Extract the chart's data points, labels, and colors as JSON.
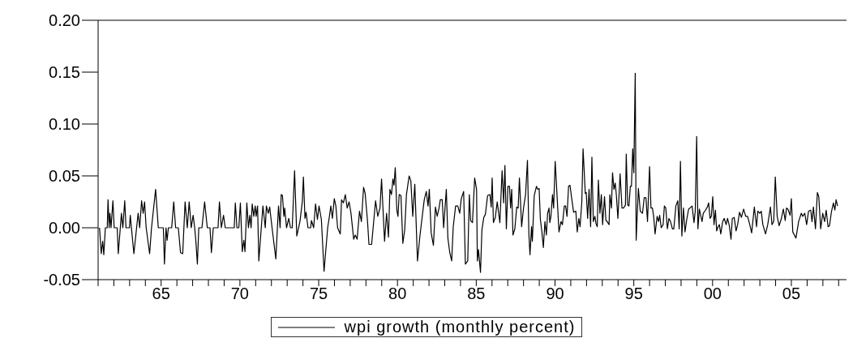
{
  "chart_data": {
    "type": "line",
    "legend": "bottom",
    "marker": "none",
    "line_style": "solid",
    "xlim": [
      1961,
      2008.5
    ],
    "xticks": [
      {
        "value": 1961,
        "label": null
      },
      {
        "value": 1962,
        "label": null
      },
      {
        "value": 1963,
        "label": null
      },
      {
        "value": 1964,
        "label": null
      },
      {
        "value": 1965,
        "label": "65"
      },
      {
        "value": 1966,
        "label": null
      },
      {
        "value": 1967,
        "label": null
      },
      {
        "value": 1968,
        "label": null
      },
      {
        "value": 1969,
        "label": null
      },
      {
        "value": 1970,
        "label": "70"
      },
      {
        "value": 1971,
        "label": null
      },
      {
        "value": 1972,
        "label": null
      },
      {
        "value": 1973,
        "label": null
      },
      {
        "value": 1974,
        "label": null
      },
      {
        "value": 1975,
        "label": "75"
      },
      {
        "value": 1976,
        "label": null
      },
      {
        "value": 1977,
        "label": null
      },
      {
        "value": 1978,
        "label": null
      },
      {
        "value": 1979,
        "label": null
      },
      {
        "value": 1980,
        "label": "80"
      },
      {
        "value": 1981,
        "label": null
      },
      {
        "value": 1982,
        "label": null
      },
      {
        "value": 1983,
        "label": null
      },
      {
        "value": 1984,
        "label": null
      },
      {
        "value": 1985,
        "label": "85"
      },
      {
        "value": 1986,
        "label": null
      },
      {
        "value": 1987,
        "label": null
      },
      {
        "value": 1988,
        "label": null
      },
      {
        "value": 1989,
        "label": null
      },
      {
        "value": 1990,
        "label": "90"
      },
      {
        "value": 1991,
        "label": null
      },
      {
        "value": 1992,
        "label": null
      },
      {
        "value": 1993,
        "label": null
      },
      {
        "value": 1994,
        "label": null
      },
      {
        "value": 1995,
        "label": "95"
      },
      {
        "value": 1996,
        "label": null
      },
      {
        "value": 1997,
        "label": null
      },
      {
        "value": 1998,
        "label": null
      },
      {
        "value": 1999,
        "label": null
      },
      {
        "value": 2000,
        "label": "00"
      },
      {
        "value": 2001,
        "label": null
      },
      {
        "value": 2002,
        "label": null
      },
      {
        "value": 2003,
        "label": null
      },
      {
        "value": 2004,
        "label": null
      },
      {
        "value": 2005,
        "label": "05"
      },
      {
        "value": 2006,
        "label": null
      },
      {
        "value": 2007,
        "label": null
      },
      {
        "value": 2008,
        "label": null
      }
    ],
    "ylim": [
      -0.05,
      0.2
    ],
    "yticks": [
      {
        "value": -0.05,
        "label": "-0.05"
      },
      {
        "value": 0,
        "label": "0.00"
      },
      {
        "value": 0.05,
        "label": "0.05"
      },
      {
        "value": 0.1,
        "label": "0.10"
      },
      {
        "value": 0.15,
        "label": "0.15"
      },
      {
        "value": 0.2,
        "label": "0.20"
      }
    ],
    "series": [
      {
        "name": "wpi growth (monthly percent)",
        "color": "#000000",
        "x": [
          1961.09,
          1961.2,
          1961.29,
          1961.36,
          1961.46,
          1961.58,
          1961.63,
          1961.7,
          1961.75,
          1961.82,
          1961.94,
          1962.02,
          1962.21,
          1962.28,
          1962.48,
          1962.57,
          1962.69,
          1962.77,
          1962.99,
          1963.04,
          1963.27,
          1963.54,
          1963.64,
          1963.76,
          1963.86,
          1963.95,
          1964.05,
          1964.27,
          1964.39,
          1964.65,
          1964.82,
          1965.14,
          1965.21,
          1965.31,
          1965.38,
          1965.46,
          1965.67,
          1965.8,
          1965.92,
          1966.09,
          1966.23,
          1966.37,
          1966.52,
          1966.66,
          1966.78,
          1966.91,
          1967.03,
          1967.13,
          1967.2,
          1967.3,
          1967.39,
          1967.59,
          1967.76,
          1967.93,
          1968.1,
          1968.19,
          1968.31,
          1968.61,
          1968.7,
          1968.82,
          1968.96,
          1969.07,
          1969.64,
          1969.71,
          1969.81,
          1969.93,
          1970.03,
          1970.15,
          1970.25,
          1970.32,
          1970.44,
          1970.54,
          1970.63,
          1970.71,
          1970.78,
          1970.88,
          1970.97,
          1971.03,
          1971.12,
          1971.2,
          1971.46,
          1971.61,
          1971.68,
          1971.8,
          1971.89,
          1972.04,
          1972.28,
          1972.45,
          1972.55,
          1972.62,
          1972.7,
          1972.79,
          1972.84,
          1972.96,
          1973.1,
          1973.21,
          1973.32,
          1973.47,
          1973.61,
          1973.81,
          1973.96,
          1974.03,
          1974.13,
          1974.2,
          1974.32,
          1974.49,
          1974.54,
          1974.68,
          1974.8,
          1974.92,
          1975.02,
          1975.17,
          1975.34,
          1975.57,
          1975.68,
          1975.77,
          1975.87,
          1975.99,
          1976.09,
          1976.2,
          1976.37,
          1976.45,
          1976.57,
          1976.69,
          1976.81,
          1976.93,
          1977.05,
          1977.22,
          1977.32,
          1977.44,
          1977.59,
          1977.71,
          1977.85,
          1977.95,
          1978.1,
          1978.19,
          1978.36,
          1978.61,
          1978.75,
          1978.89,
          1978.99,
          1979.18,
          1979.31,
          1979.43,
          1979.52,
          1979.62,
          1979.71,
          1979.78,
          1979.86,
          1979.96,
          1980.03,
          1980.11,
          1980.22,
          1980.34,
          1980.46,
          1980.57,
          1980.74,
          1980.85,
          1980.97,
          1981.1,
          1981.27,
          1981.43,
          1981.7,
          1981.83,
          1981.94,
          1982.02,
          1982.14,
          1982.28,
          1982.41,
          1982.52,
          1982.64,
          1982.72,
          1982.84,
          1982.93,
          1983.1,
          1983.2,
          1983.32,
          1983.44,
          1983.54,
          1983.69,
          1983.83,
          1983.95,
          1984.05,
          1984.2,
          1984.31,
          1984.46,
          1984.56,
          1984.64,
          1984.76,
          1984.9,
          1985.02,
          1985.07,
          1985.14,
          1985.27,
          1985.36,
          1985.48,
          1985.58,
          1985.72,
          1985.87,
          1985.95,
          1986.01,
          1986.09,
          1986.21,
          1986.33,
          1986.5,
          1986.64,
          1986.74,
          1986.82,
          1986.91,
          1987.01,
          1987.11,
          1987.18,
          1987.25,
          1987.33,
          1987.45,
          1987.57,
          1987.66,
          1987.74,
          1987.88,
          1988.0,
          1988.13,
          1988.25,
          1988.34,
          1988.41,
          1988.51,
          1988.56,
          1988.68,
          1988.82,
          1988.9,
          1988.99,
          1989.07,
          1989.16,
          1989.26,
          1989.36,
          1989.45,
          1989.53,
          1989.62,
          1989.67,
          1989.74,
          1989.84,
          1989.91,
          1990.01,
          1990.09,
          1990.25,
          1990.38,
          1990.47,
          1990.59,
          1990.67,
          1990.76,
          1990.86,
          1990.95,
          1991.06,
          1991.18,
          1991.32,
          1991.41,
          1991.51,
          1991.59,
          1991.7,
          1991.78,
          1991.92,
          1991.98,
          1992.07,
          1992.16,
          1992.26,
          1992.34,
          1992.43,
          1992.53,
          1992.6,
          1992.68,
          1992.75,
          1992.85,
          1992.94,
          1993.02,
          1993.14,
          1993.23,
          1993.31,
          1993.43,
          1993.48,
          1993.58,
          1993.65,
          1993.74,
          1993.82,
          1993.89,
          1993.99,
          1994.13,
          1994.25,
          1994.35,
          1994.47,
          1994.52,
          1994.61,
          1994.69,
          1994.78,
          1994.85,
          1994.93,
          1995.0,
          1995.09,
          1995.15,
          1995.29,
          1995.41,
          1995.55,
          1995.66,
          1995.77,
          1995.87,
          1996.0,
          1996.09,
          1996.18,
          1996.26,
          1996.35,
          1996.48,
          1996.57,
          1996.64,
          1996.74,
          1996.86,
          1996.94,
          1997.03,
          1997.13,
          1997.23,
          1997.33,
          1997.45,
          1997.54,
          1997.67,
          1997.79,
          1997.88,
          1997.96,
          1998.05,
          1998.15,
          1998.25,
          1998.36,
          1998.48,
          1998.56,
          1998.7,
          1998.82,
          1998.9,
          1998.99,
          1999.07,
          1999.16,
          1999.33,
          1999.41,
          1999.55,
          1999.67,
          1999.75,
          1999.84,
          1999.92,
          2000.01,
          2000.09,
          2000.18,
          2000.26,
          2000.35,
          2000.43,
          2000.52,
          2000.64,
          2000.74,
          2000.86,
          2000.95,
          2001.06,
          2001.17,
          2001.25,
          2001.37,
          2001.49,
          2001.59,
          2001.71,
          2001.83,
          2001.97,
          2002.1,
          2002.22,
          2002.36,
          2002.48,
          2002.65,
          2002.79,
          2002.87,
          2002.99,
          2003.09,
          2003.19,
          2003.36,
          2003.5,
          2003.67,
          2003.77,
          2003.88,
          2003.98,
          2004.1,
          2004.22,
          2004.35,
          2004.49,
          2004.61,
          2004.69,
          2004.78,
          2004.92,
          2005.0,
          2005.09,
          2005.29,
          2005.46,
          2005.63,
          2005.72,
          2005.85,
          2005.97,
          2006.09,
          2006.23,
          2006.31,
          2006.4,
          2006.53,
          2006.65,
          2006.74,
          2006.86,
          2006.99,
          2007.11,
          2007.21,
          2007.33,
          2007.42,
          2007.55,
          2007.67,
          2007.76,
          2007.84,
          2007.93
        ],
        "values": [
          0,
          -0.025,
          -0.013,
          -0.026,
          0,
          0,
          0.027,
          0,
          0.014,
          0,
          0.026,
          0,
          0,
          -0.025,
          0.014,
          0,
          0.026,
          0,
          0,
          0.012,
          -0.025,
          0.014,
          0,
          0.026,
          0.014,
          0.025,
          0,
          -0.025,
          0,
          0.037,
          0,
          0,
          -0.035,
          0,
          -0.012,
          0,
          0,
          0.025,
          0,
          0,
          -0.024,
          -0.025,
          0.025,
          0,
          0.025,
          0,
          0.012,
          0,
          -0.012,
          -0.035,
          0,
          0,
          0.025,
          0,
          0,
          -0.024,
          0,
          0,
          0.025,
          0,
          0.012,
          0,
          0,
          0.024,
          0,
          0,
          0.024,
          -0.023,
          -0.012,
          -0.023,
          0.024,
          0,
          0.012,
          0,
          0.023,
          0.011,
          0.021,
          0.011,
          0.021,
          -0.032,
          0.021,
          0,
          0.021,
          0.014,
          0.02,
          0,
          -0.03,
          0.021,
          0,
          0.032,
          0.031,
          0.011,
          0.019,
          0,
          0.009,
          0,
          0,
          0.055,
          -0.008,
          0.006,
          0.025,
          0.049,
          0.009,
          0.015,
          0,
          0,
          0.007,
          0,
          0.023,
          0.008,
          0.021,
          0.008,
          -0.042,
          0,
          0.011,
          0.021,
          0.009,
          0.028,
          0.021,
          0,
          -0.006,
          0.027,
          0.024,
          0.032,
          0.019,
          0.025,
          0.014,
          -0.011,
          -0.007,
          -0.011,
          0.016,
          0.006,
          0.039,
          0.033,
          0.006,
          -0.016,
          -0.016,
          0.026,
          0.011,
          0.019,
          0.047,
          -0.013,
          0.014,
          -0.009,
          0.037,
          0.032,
          0.047,
          0.041,
          0.058,
          0.017,
          0.011,
          0.032,
          0.031,
          -0.015,
          -0.002,
          0.032,
          0.05,
          0.045,
          0.011,
          0.042,
          -0.032,
          -0.007,
          0.027,
          0.035,
          0.021,
          0.037,
          -0.005,
          -0.017,
          0.02,
          0.011,
          0.019,
          0.027,
          0.027,
          0,
          0.037,
          -0.01,
          -0.024,
          -0.032,
          0.001,
          0.021,
          0.021,
          0.014,
          0.028,
          0.035,
          -0.035,
          -0.032,
          0.032,
          0.007,
          0.005,
          0.048,
          0.037,
          -0.032,
          -0.021,
          -0.043,
          -0.002,
          0.01,
          0.013,
          0.031,
          0.032,
          0.02,
          0.048,
          0.005,
          0.01,
          0.025,
          0.005,
          0.055,
          0.024,
          0.06,
          -0.001,
          0.04,
          0.04,
          0.019,
          0.037,
          -0.007,
          -0.001,
          0.02,
          0.019,
          0.048,
          0.001,
          0.019,
          0.032,
          0.065,
          -0.006,
          -0.026,
          0.001,
          -0.013,
          0.031,
          0.04,
          0.037,
          0.038,
          0.008,
          -0.003,
          -0.019,
          0.006,
          -0.007,
          0.014,
          0.019,
          0.005,
          0.011,
          0.032,
          0.019,
          0.064,
          0.042,
          -0.004,
          0.006,
          0.003,
          0.021,
          0.021,
          0.011,
          0.04,
          0.041,
          0.028,
          0.015,
          0.016,
          -0.004,
          0.009,
          0.001,
          0.025,
          0.076,
          0.033,
          0.034,
          0.009,
          0.037,
          0.001,
          0.068,
          0.006,
          0.011,
          0.004,
          0.001,
          0.046,
          0.014,
          0.032,
          0.003,
          0.03,
          0.007,
          0.006,
          0.003,
          0.032,
          0.019,
          0.053,
          0.037,
          0.043,
          0.032,
          0.009,
          0.052,
          0.019,
          0.019,
          0.022,
          0.071,
          0.022,
          0.021,
          0.04,
          0.04,
          0.076,
          0.053,
          0.149,
          -0.012,
          0.038,
          0.016,
          0.014,
          0.029,
          0.029,
          0.006,
          0.059,
          0.019,
          0.019,
          0.011,
          -0.006,
          0.011,
          0.006,
          0.012,
          0,
          0.003,
          0.021,
          0.019,
          -0.001,
          0.009,
          0.006,
          -0.001,
          -0.001,
          0.021,
          0.026,
          -0.001,
          0.064,
          -0.008,
          0.019,
          -0.004,
          0.008,
          0.018,
          0.019,
          0.021,
          0.005,
          0.016,
          0.088,
          -0.001,
          0.018,
          0.006,
          0.014,
          0.017,
          0.02,
          0.024,
          0.009,
          0.011,
          0.03,
          0.003,
          0.017,
          -0.003,
          0.001,
          0.003,
          -0.006,
          0.006,
          0.009,
          0.003,
          0.009,
          0.002,
          -0.011,
          0.009,
          0.01,
          -0.003,
          0.003,
          0.015,
          0.01,
          0.018,
          0.011,
          0.011,
          0.003,
          -0.005,
          0.02,
          0.001,
          0.016,
          0.014,
          0.016,
          0.003,
          -0.006,
          0.003,
          0.02,
          0.003,
          0.006,
          0.049,
          0.011,
          0.002,
          0.008,
          0.018,
          0.007,
          0.019,
          0.018,
          0.012,
          0.028,
          -0.004,
          -0.01,
          0.006,
          0.014,
          0.011,
          0.014,
          0.003,
          0.016,
          0.017,
          0.006,
          0.02,
          -0.001,
          0.034,
          0.03,
          -0.001,
          0.014,
          0.006,
          0.017,
          0.001,
          0.002,
          0.016,
          0.024,
          0.017,
          0.027,
          0.021
        ]
      }
    ]
  }
}
